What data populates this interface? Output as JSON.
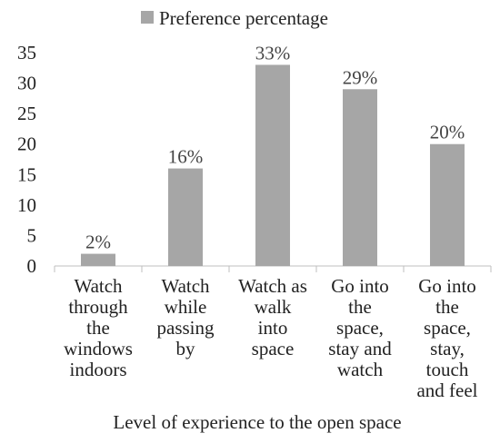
{
  "chart_data": {
    "type": "bar",
    "categories": [
      [
        "Watch",
        "through",
        "the",
        "windows",
        "indoors"
      ],
      [
        "Watch",
        "while",
        "passing",
        "by"
      ],
      [
        "Watch as",
        "walk",
        "into",
        "space"
      ],
      [
        "Go into",
        "the",
        "space,",
        "stay and",
        "watch"
      ],
      [
        "Go into",
        "the",
        "space,",
        "stay,",
        "touch",
        "and feel"
      ]
    ],
    "series": [
      {
        "name": "Preference percentage",
        "values": [
          2,
          16,
          33,
          29,
          20
        ],
        "labels": [
          "2%",
          "16%",
          "33%",
          "29%",
          "20%"
        ],
        "color": "#a6a6a6"
      }
    ],
    "xlabel": "Level of experience to the open space",
    "ylabel": "",
    "ylim": [
      0,
      35
    ],
    "yticks": [
      "0",
      "5",
      "10",
      "15",
      "20",
      "25",
      "30",
      "35"
    ],
    "legend": "top",
    "grid": false
  }
}
